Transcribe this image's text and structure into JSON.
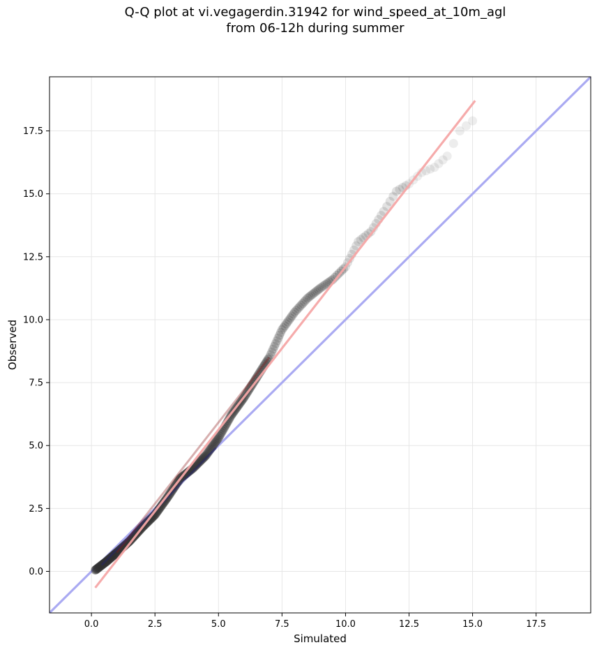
{
  "chart_data": {
    "type": "scatter",
    "title": [
      "Q-Q plot at vi.vegagerdin.31942 for wind_speed_at_10m_agl",
      "from 06-12h during summer"
    ],
    "xlabel": "Simulated",
    "ylabel": "Observed",
    "xlim": [
      -1.65,
      19.65
    ],
    "ylim": [
      -1.65,
      19.65
    ],
    "xticks": [
      0.0,
      2.5,
      5.0,
      7.5,
      10.0,
      12.5,
      15.0,
      17.5
    ],
    "yticks": [
      0.0,
      2.5,
      5.0,
      7.5,
      10.0,
      12.5,
      15.0,
      17.5
    ],
    "xtick_labels": [
      "0.0",
      "2.5",
      "5.0",
      "7.5",
      "10.0",
      "12.5",
      "15.0",
      "17.5"
    ],
    "ytick_labels": [
      "0.0",
      "2.5",
      "5.0",
      "7.5",
      "10.0",
      "12.5",
      "15.0",
      "17.5"
    ],
    "grid": true,
    "quantile_knots": {
      "x": [
        0.15,
        0.6,
        1.0,
        1.5,
        2.0,
        2.5,
        3.0,
        3.5,
        4.0,
        4.5,
        5.0,
        5.5,
        6.0,
        6.5,
        7.0,
        7.5,
        8.0,
        8.5,
        9.0,
        9.5,
        10.0,
        10.5,
        11.0,
        11.5,
        12.0,
        12.5,
        13.0,
        13.5,
        14.0,
        14.5,
        15.0
      ],
      "y": [
        0.05,
        0.4,
        0.75,
        1.2,
        1.75,
        2.25,
        2.95,
        3.7,
        4.1,
        4.6,
        5.3,
        6.2,
        6.9,
        7.7,
        8.5,
        9.6,
        10.3,
        10.85,
        11.25,
        11.6,
        12.1,
        13.1,
        13.5,
        14.3,
        15.1,
        15.4,
        15.85,
        16.05,
        16.5,
        17.5,
        17.9
      ]
    },
    "series": [
      {
        "name": "",
        "kind": "identity-line",
        "color": "#aaaaf2",
        "x": [
          -1.65,
          19.65
        ],
        "y": [
          -1.65,
          19.65
        ]
      },
      {
        "name": "",
        "kind": "fit-line",
        "color": "#f5a6a6",
        "x": [
          0.15,
          15.1
        ],
        "y": [
          -0.65,
          18.7
        ]
      }
    ]
  }
}
